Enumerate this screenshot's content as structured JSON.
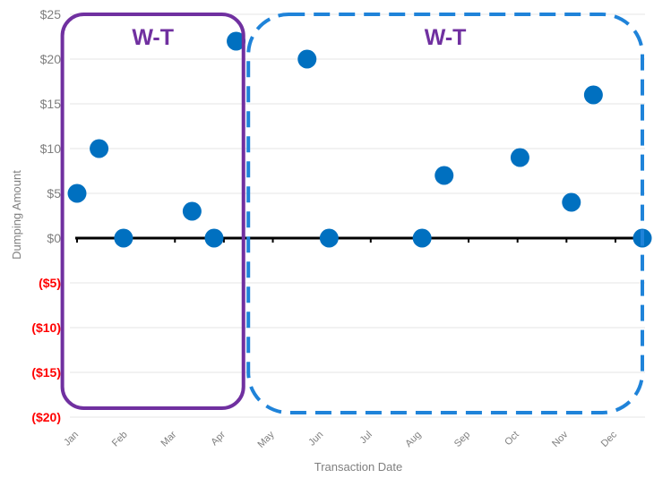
{
  "chart_data": {
    "type": "scatter",
    "title": "",
    "xlabel": "Transaction Date",
    "ylabel": "Dumping Amount",
    "x_tick_labels": [
      "Jan",
      "Feb",
      "Mar",
      "Apr",
      "May",
      "Jun",
      "Jul",
      "Aug",
      "Sep",
      "Oct",
      "Nov",
      "Dec"
    ],
    "y_tick_labels": [
      "$25",
      "$20",
      "$15",
      "$10",
      "$5",
      "$0",
      "($5)",
      "($10)",
      "($15)",
      "($20)"
    ],
    "y_tick_values": [
      25,
      20,
      15,
      10,
      5,
      0,
      -5,
      -10,
      -15,
      -20
    ],
    "ylim": [
      -20,
      25
    ],
    "xlim_months": [
      1,
      12.55
    ],
    "grid": "horizontal",
    "legend": "none",
    "series": [
      {
        "points": [
          {
            "x": 1.0,
            "y": 5
          },
          {
            "x": 1.45,
            "y": 10
          },
          {
            "x": 1.95,
            "y": 0
          },
          {
            "x": 3.35,
            "y": 3
          },
          {
            "x": 3.8,
            "y": 0
          },
          {
            "x": 4.25,
            "y": 22
          },
          {
            "x": 5.7,
            "y": 20
          },
          {
            "x": 6.15,
            "y": 0
          },
          {
            "x": 8.05,
            "y": 0
          },
          {
            "x": 8.5,
            "y": 7
          },
          {
            "x": 10.05,
            "y": 9
          },
          {
            "x": 11.1,
            "y": 4
          },
          {
            "x": 11.55,
            "y": 16
          },
          {
            "x": 12.55,
            "y": 0
          }
        ]
      }
    ],
    "annotations": [
      {
        "label": "W-T",
        "style": "solid",
        "x_from": 0.7,
        "x_to": 4.4,
        "y_from": -19,
        "y_to": 25
      },
      {
        "label": "W-T",
        "style": "dashed",
        "x_from": 4.5,
        "x_to": 12.55,
        "y_from": -19.5,
        "y_to": 25
      }
    ],
    "colors": {
      "points": "#0070C0",
      "positive_tick": "#7f7f7f",
      "negative_tick": "#FF0000",
      "zero_line": "#000000",
      "grid": "#e6e6e6",
      "solid_box": "#7030A0",
      "dashed_box": "#1F83D9",
      "region_label": "#7030A0"
    }
  }
}
